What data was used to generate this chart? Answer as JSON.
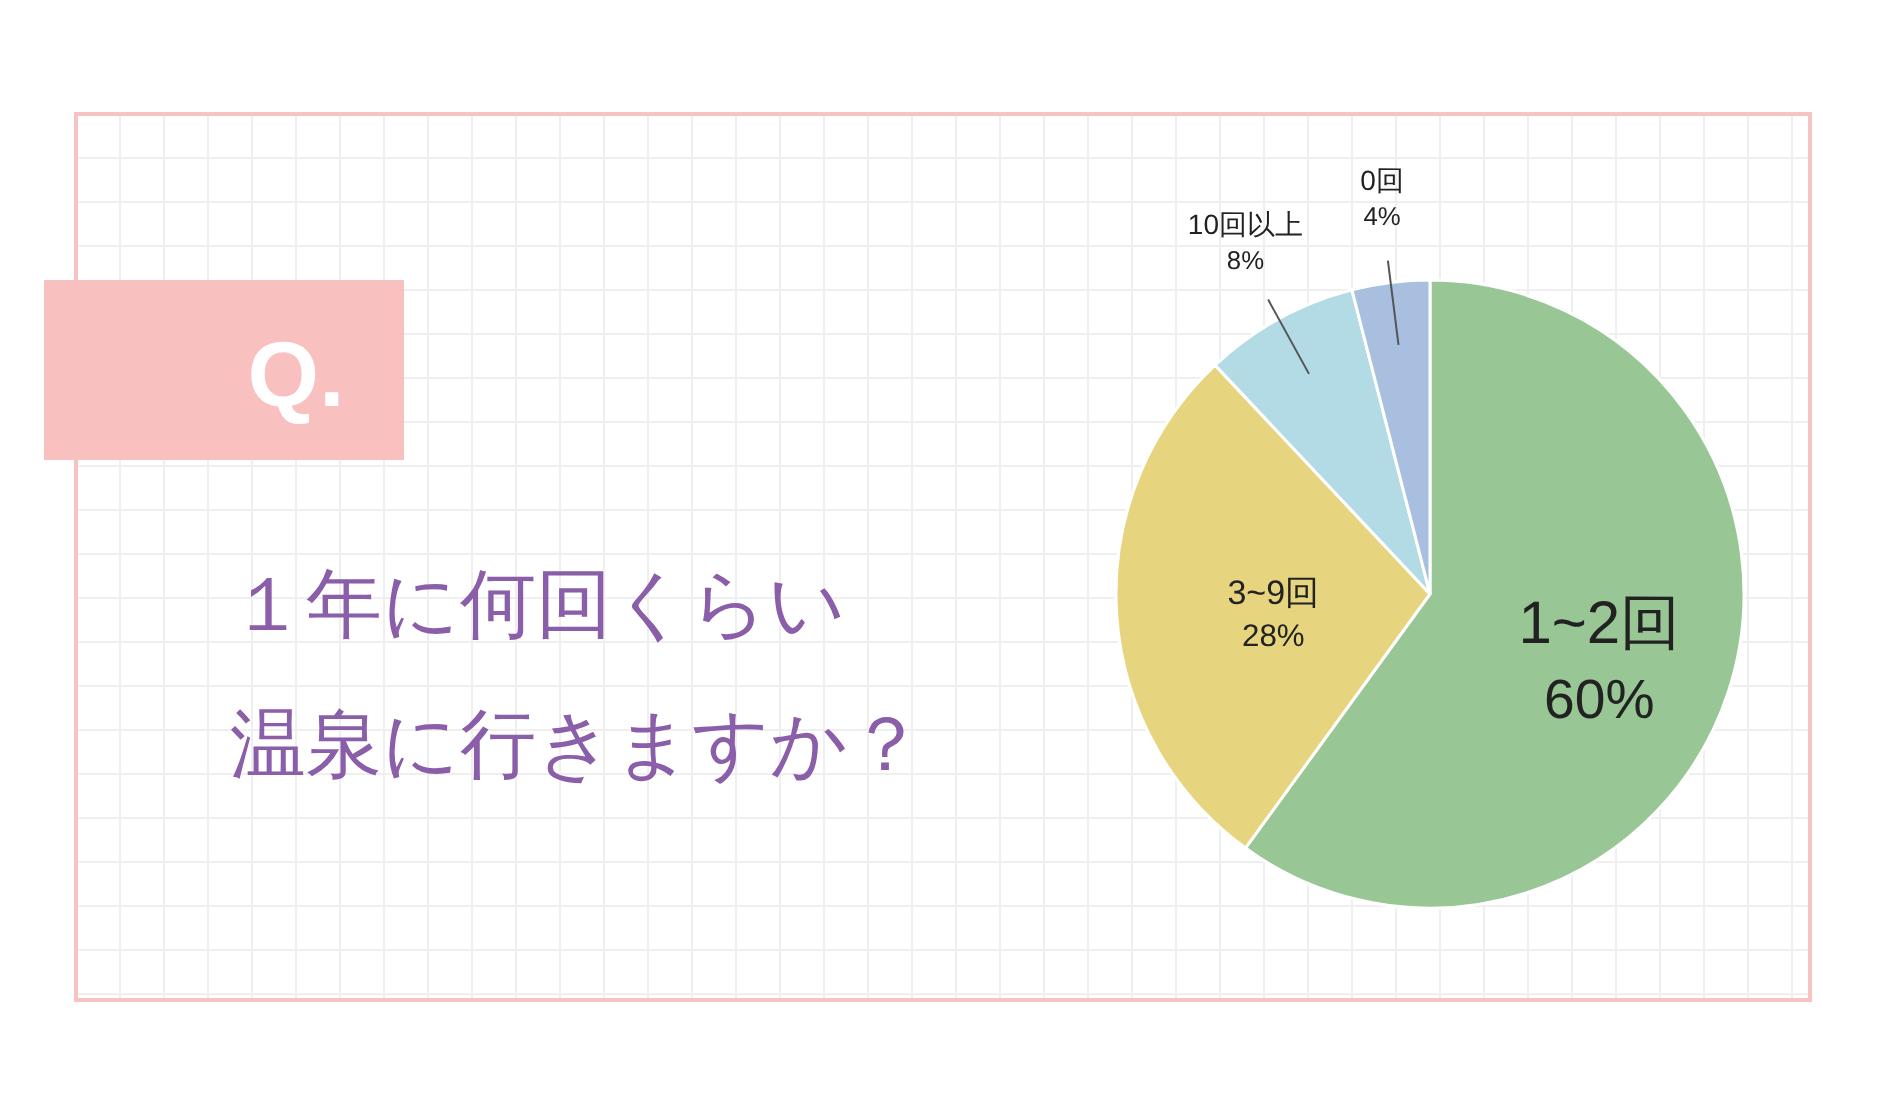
{
  "chart_data": {
    "type": "pie",
    "title": "Q.",
    "subtitle": "１年に何回くらい",
    "annotations": [
      "温泉に行きますか？"
    ],
    "categories": [
      "1~2回",
      "3~9回",
      "10回以上",
      "0回"
    ],
    "values": [
      60,
      28,
      8,
      4
    ],
    "colors": [
      "#98c695",
      "#e6d47e",
      "#b3dbe6",
      "#a9bfdf"
    ],
    "value_labels": [
      "60%",
      "28%",
      "8%",
      "4%"
    ]
  }
}
